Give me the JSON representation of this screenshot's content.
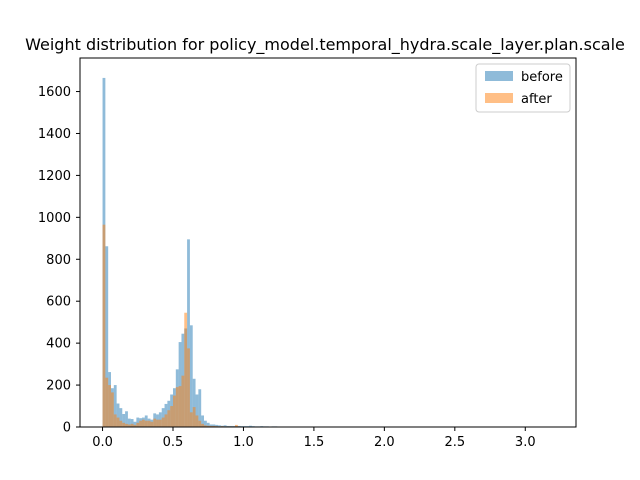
{
  "chart_data": {
    "type": "bar",
    "title": "Weight distribution for policy_model.temporal_hydra.scale_layer.plan.scale",
    "xlabel": "",
    "ylabel": "",
    "xlim": [
      -0.16,
      3.36
    ],
    "ylim": [
      0,
      1760
    ],
    "xticks": [
      0.0,
      0.5,
      1.0,
      1.5,
      2.0,
      2.5,
      3.0
    ],
    "xtick_labels": [
      "0.0",
      "0.5",
      "1.0",
      "1.5",
      "2.0",
      "2.5",
      "3.0"
    ],
    "yticks": [
      0,
      200,
      400,
      600,
      800,
      1000,
      1200,
      1400,
      1600
    ],
    "ytick_labels": [
      "0",
      "200",
      "400",
      "600",
      "800",
      "1000",
      "1200",
      "1400",
      "1600"
    ],
    "grid": false,
    "legend_position": "top-right",
    "bin_start": 0.0,
    "bin_width": 0.02,
    "series": [
      {
        "name": "before",
        "color": "#1f77b4",
        "alpha": 0.5,
        "values": [
          1665,
          862,
          262,
          185,
          200,
          112,
          90,
          62,
          75,
          40,
          38,
          25,
          45,
          42,
          45,
          55,
          40,
          35,
          65,
          60,
          70,
          90,
          110,
          125,
          155,
          185,
          275,
          405,
          445,
          470,
          895,
          485,
          230,
          155,
          180,
          55,
          30,
          20,
          12,
          12,
          10,
          8,
          6,
          8,
          5,
          5,
          5,
          5,
          5,
          4,
          4,
          4,
          6,
          4,
          3,
          3,
          4,
          3,
          3,
          2,
          3,
          3,
          2,
          2,
          2,
          2,
          2,
          2,
          1,
          1,
          1,
          1,
          1,
          1,
          1,
          1,
          0,
          0,
          1,
          0,
          0,
          0,
          0,
          0,
          0,
          0,
          0,
          0,
          0,
          0,
          0,
          0,
          0,
          0,
          0,
          0,
          0,
          0,
          0,
          0
        ]
      },
      {
        "name": "after",
        "color": "#ff7f0e",
        "alpha": 0.5,
        "values": [
          965,
          235,
          200,
          165,
          60,
          45,
          30,
          20,
          15,
          12,
          15,
          10,
          20,
          30,
          35,
          30,
          30,
          25,
          40,
          35,
          35,
          45,
          60,
          80,
          100,
          150,
          190,
          195,
          245,
          545,
          375,
          70,
          95,
          55,
          30,
          15,
          8,
          6,
          5,
          5,
          4,
          3,
          4,
          3,
          3,
          3,
          3,
          10,
          3,
          2,
          2,
          2,
          2,
          2,
          1,
          1,
          1,
          1,
          1,
          1,
          0,
          0,
          0,
          0,
          0,
          0,
          0,
          0,
          0,
          0,
          0,
          0,
          0,
          0,
          0,
          0,
          0,
          0,
          0,
          0,
          0,
          0,
          0,
          0,
          0,
          0,
          0,
          0,
          0,
          0,
          0,
          0,
          0,
          0,
          0,
          0,
          0,
          0,
          0,
          0
        ]
      }
    ]
  }
}
